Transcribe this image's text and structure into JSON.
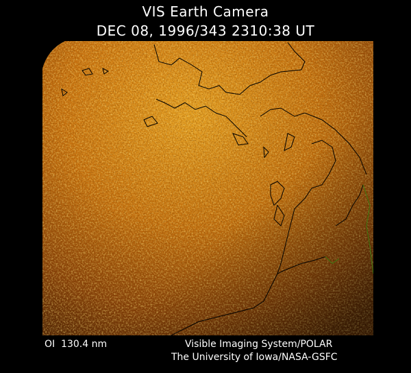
{
  "header": {
    "title": "VIS Earth Camera",
    "timestamp": "DEC 08, 1996/343 2310:38 UT"
  },
  "footer": {
    "wavelength": "OI  130.4 nm",
    "instrument": "Visible Imaging System/POLAR",
    "institution": "The University of Iowa/NASA-GSFC"
  }
}
